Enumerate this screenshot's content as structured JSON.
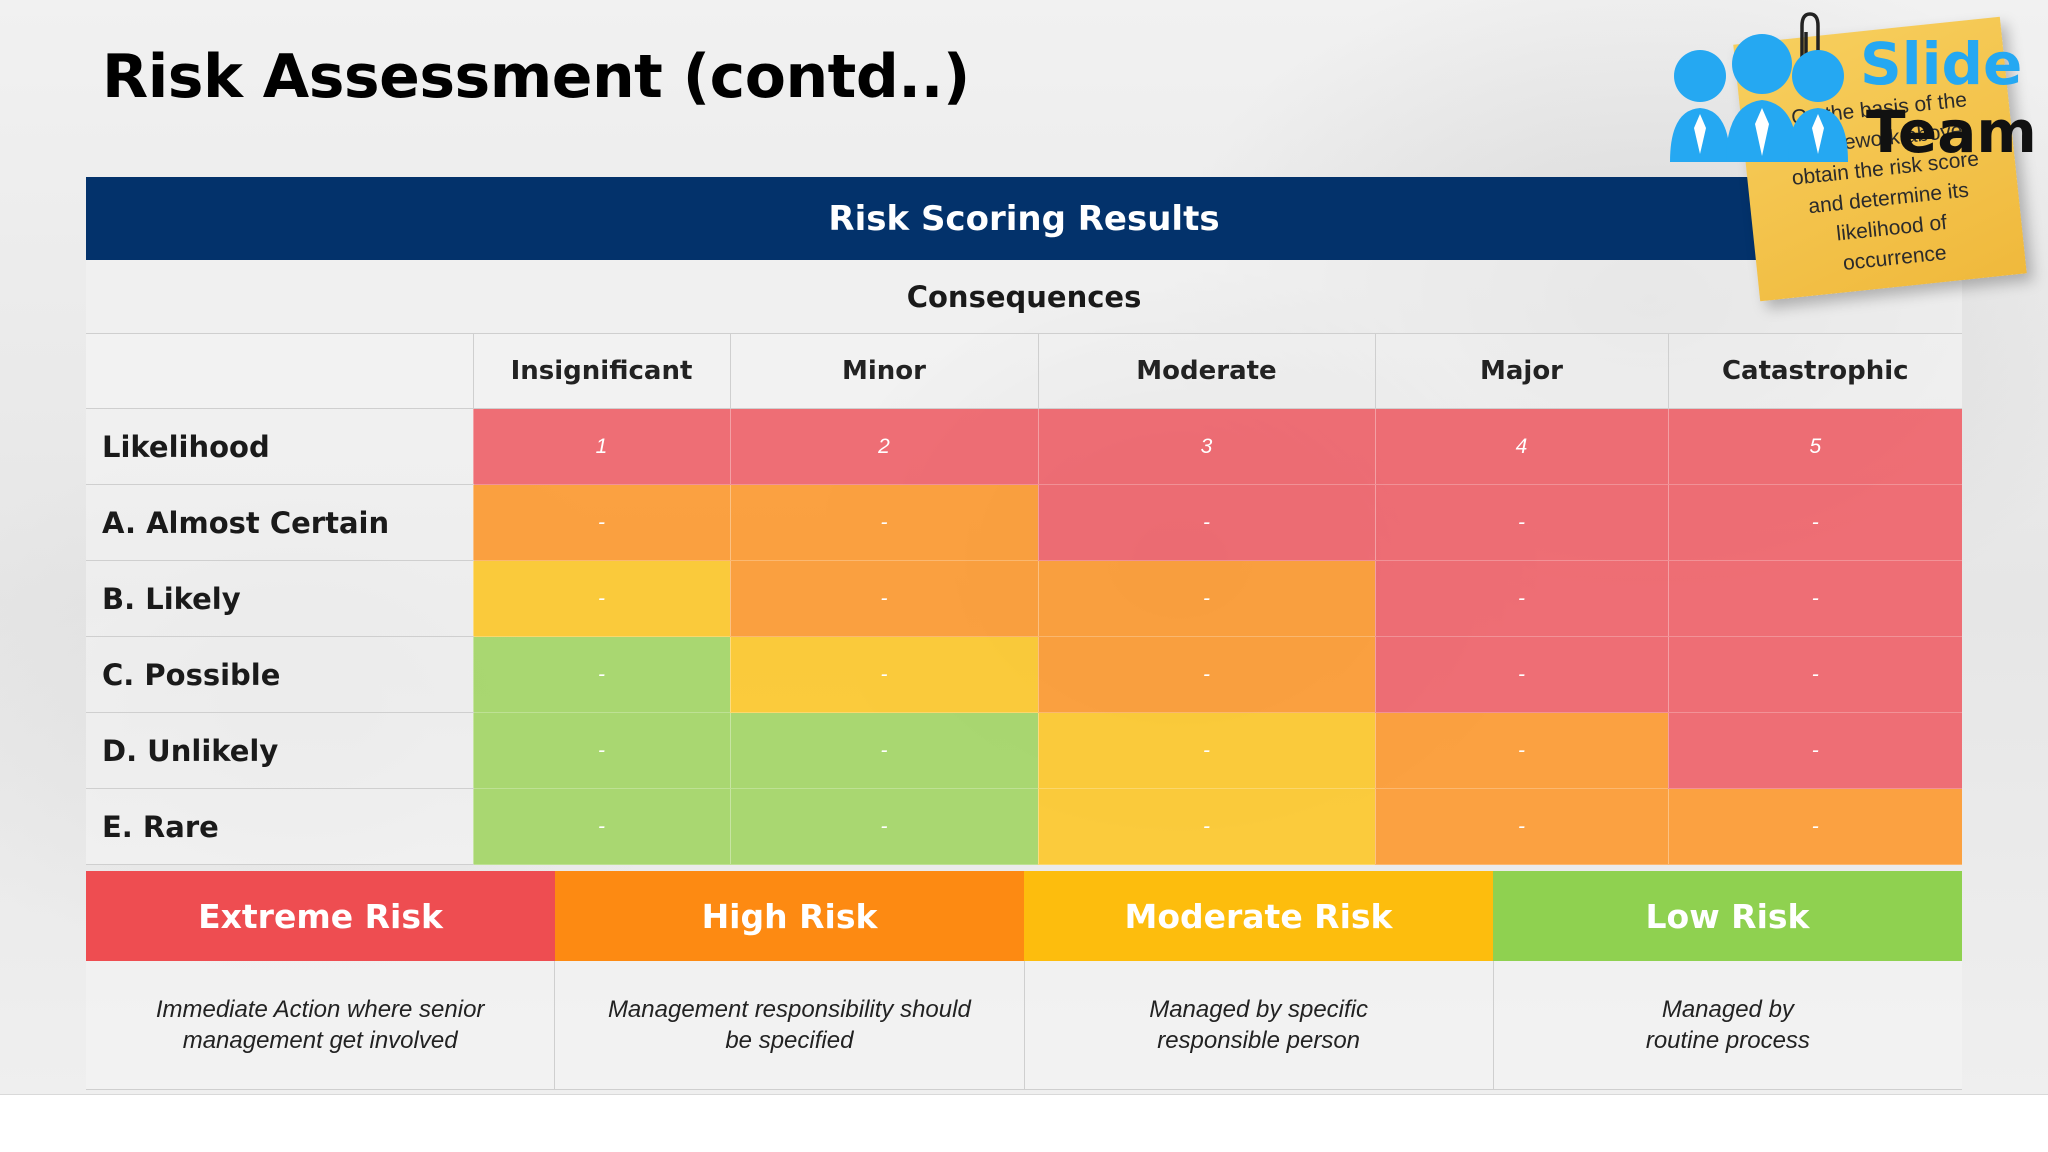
{
  "slide": {
    "title": "Risk Assessment (contd..)",
    "banner": "Risk Scoring Results",
    "consequences_label": "Consequences",
    "likelihood_label": "Likelihood",
    "columns": [
      "Insignificant",
      "Minor",
      "Moderate",
      "Major",
      "Catastrophic"
    ],
    "column_numbers": [
      "1",
      "2",
      "3",
      "4",
      "5"
    ],
    "rows": [
      {
        "label": "A. Almost Certain",
        "cells": [
          "-",
          "-",
          "-",
          "-",
          "-"
        ]
      },
      {
        "label": "B. Likely",
        "cells": [
          "-",
          "-",
          "-",
          "-",
          "-"
        ]
      },
      {
        "label": "C. Possible",
        "cells": [
          "-",
          "-",
          "-",
          "-",
          "-"
        ]
      },
      {
        "label": "D. Unlikely",
        "cells": [
          "-",
          "-",
          "-",
          "-",
          "-"
        ]
      },
      {
        "label": "E. Rare",
        "cells": [
          "-",
          "-",
          "-",
          "-",
          "-"
        ]
      }
    ],
    "legend": [
      {
        "label": "Extreme Risk",
        "line1": "Immediate Action where senior",
        "line2": "management get involved"
      },
      {
        "label": "High Risk",
        "line1": "Management responsibility should",
        "line2": "be specified"
      },
      {
        "label": "Moderate Risk",
        "line1": "Managed by specific",
        "line2": "responsible person"
      },
      {
        "label": "Low Risk",
        "line1": "Managed by",
        "line2": "routine process"
      }
    ]
  },
  "sticky_note": {
    "lines": [
      "On the basis of the",
      "framework above",
      "obtain the risk score",
      "and determine its",
      "likelihood of",
      "occurrence"
    ]
  },
  "logo": {
    "word1": "Slide",
    "word2": "Team"
  },
  "colors": {
    "banner": "#03326b",
    "extreme": "#ee4d51",
    "high": "#fd8a12",
    "moderate": "#fdbd0d",
    "low": "#8fd150",
    "logo_blue": "#25a8f2",
    "sticky": "#f0b93c"
  }
}
